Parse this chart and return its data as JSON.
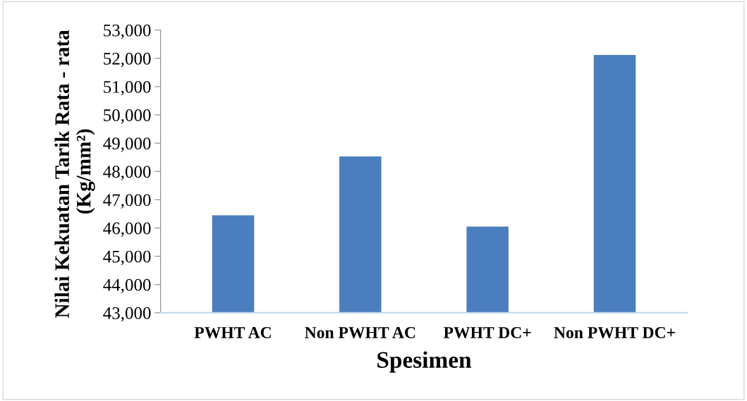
{
  "chart_data": {
    "type": "bar",
    "xlabel": "Spesimen",
    "ylabel": "Nilai Kekuatan Tarik Rata - rata  (Kg/mm²)",
    "categories": [
      "PWHT AC",
      "Non PWHT AC",
      "PWHT DC+",
      "Non PWHT DC+"
    ],
    "values": [
      46450,
      48530,
      46050,
      52120
    ],
    "color": "#4a7ebf",
    "ylim": [
      43000,
      53000
    ],
    "yticks": [
      {
        "value": 43000,
        "label": "43,000"
      },
      {
        "value": 44000,
        "label": "44,000"
      },
      {
        "value": 45000,
        "label": "45,000"
      },
      {
        "value": 46000,
        "label": "46,000"
      },
      {
        "value": 47000,
        "label": "47,000"
      },
      {
        "value": 48000,
        "label": "48,000"
      },
      {
        "value": 49000,
        "label": "49,000"
      },
      {
        "value": 50000,
        "label": "50,000"
      },
      {
        "value": 51000,
        "label": "51,000"
      },
      {
        "value": 52000,
        "label": "52,000"
      },
      {
        "value": 53000,
        "label": "53,000"
      }
    ],
    "grid": false
  }
}
